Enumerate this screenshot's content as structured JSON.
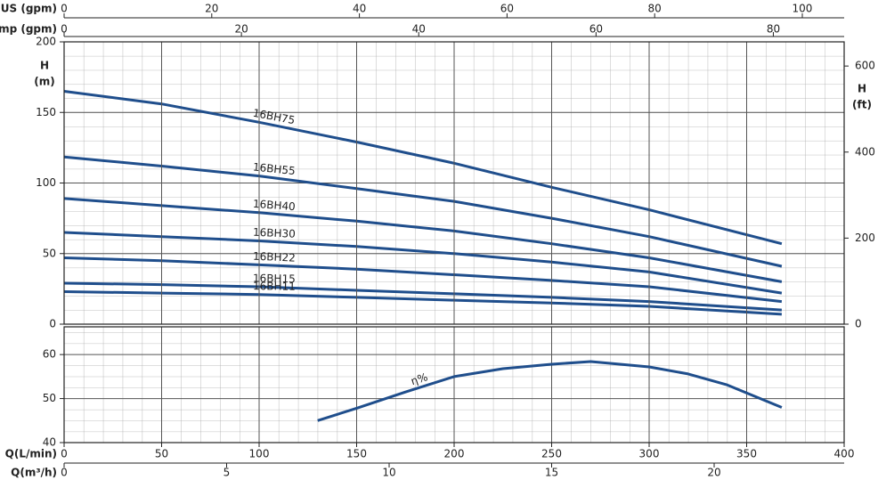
{
  "chart_data": [
    {
      "type": "line",
      "x_axes": [
        {
          "label": "US (gpm)",
          "lim": [
            0,
            105.67
          ],
          "ticks": [
            0,
            20,
            40,
            60,
            80,
            100
          ]
        },
        {
          "label": "Imp (gpm)",
          "lim": [
            0,
            87.99
          ],
          "ticks": [
            0,
            20,
            40,
            60,
            80
          ]
        }
      ],
      "xlim": [
        0,
        400
      ],
      "x": [
        0,
        50,
        100,
        150,
        200,
        250,
        300,
        368
      ],
      "y_label": [
        "H",
        "(m)"
      ],
      "ylim": [
        0,
        200
      ],
      "yticks": [
        0,
        50,
        100,
        150,
        200
      ],
      "y2_label": [
        "H",
        "(ft)"
      ],
      "y2lim": [
        0,
        656.2
      ],
      "y2ticks": [
        0,
        200,
        400,
        600
      ],
      "grid": true,
      "series": [
        {
          "name": "16BH75",
          "color": "#1f4e8c",
          "values": [
            165,
            156,
            143,
            129,
            114,
            97,
            81,
            57
          ]
        },
        {
          "name": "16BH55",
          "color": "#1f4e8c",
          "values": [
            118.5,
            112,
            105,
            96,
            87,
            75,
            62,
            41
          ]
        },
        {
          "name": "16BH40",
          "color": "#1f4e8c",
          "values": [
            89,
            84,
            79,
            73,
            66,
            57,
            47,
            30
          ]
        },
        {
          "name": "16BH30",
          "color": "#1f4e8c",
          "values": [
            65,
            62,
            59,
            55,
            50,
            44,
            37,
            22
          ]
        },
        {
          "name": "16BH22",
          "color": "#1f4e8c",
          "values": [
            47,
            45,
            42,
            39,
            35,
            31,
            26.5,
            16
          ]
        },
        {
          "name": "16BH15",
          "color": "#1f4e8c",
          "values": [
            29,
            28,
            26.5,
            24,
            21.5,
            19,
            16,
            10
          ]
        },
        {
          "name": "16BH11",
          "color": "#1f4e8c",
          "values": [
            23,
            22,
            21,
            19,
            17,
            15,
            12.6,
            7
          ]
        }
      ]
    },
    {
      "type": "line",
      "x_axes": [
        {
          "label": "Q(L/min)",
          "lim": [
            0,
            400
          ],
          "ticks": [
            0,
            50,
            100,
            150,
            200,
            250,
            300,
            350,
            400
          ]
        },
        {
          "label": "Q(m³/h)",
          "lim": [
            0,
            24
          ],
          "ticks": [
            0,
            5,
            10,
            15,
            20
          ]
        }
      ],
      "xlim": [
        0,
        400
      ],
      "x": [
        130,
        150,
        175,
        200,
        225,
        250,
        270,
        300,
        320,
        340,
        368
      ],
      "ylim": [
        40,
        66.3
      ],
      "yticks": [
        40,
        50,
        60
      ],
      "grid": true,
      "series": [
        {
          "name": "η%",
          "color": "#1f4e8c",
          "values": [
            45,
            47.8,
            51.5,
            55,
            56.8,
            57.8,
            58.4,
            57.2,
            55.6,
            53.1,
            48
          ]
        }
      ]
    }
  ]
}
